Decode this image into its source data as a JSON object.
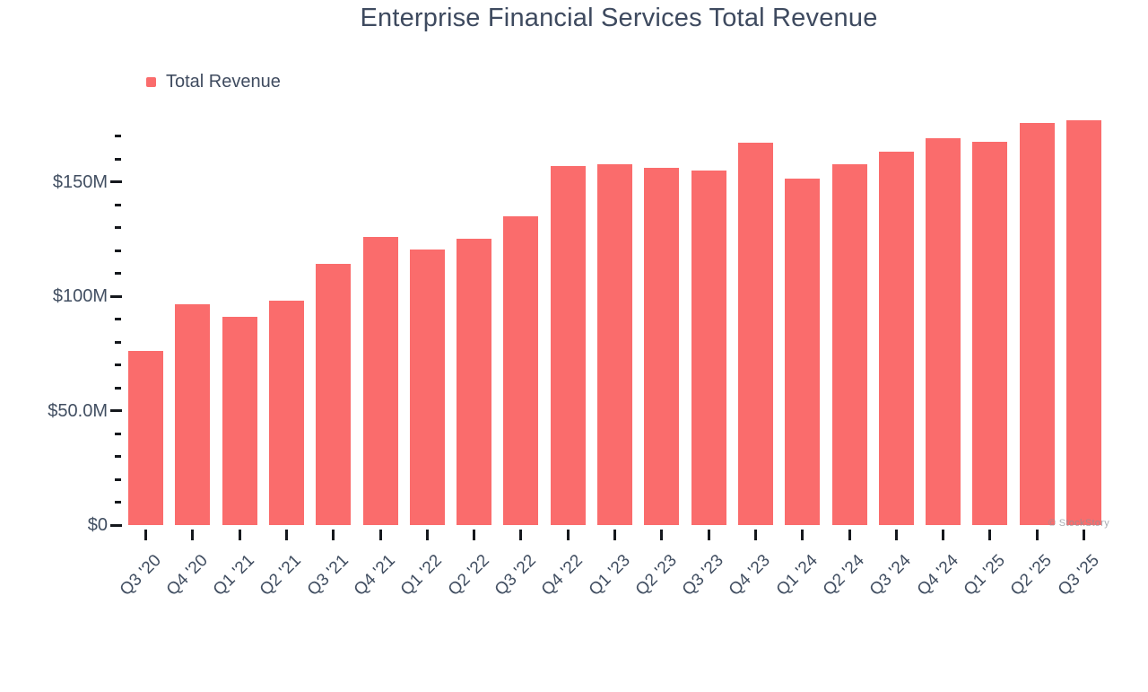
{
  "title": "Enterprise Financial Services Total Revenue",
  "legend": {
    "label": "Total Revenue",
    "color": "#fa6c6c"
  },
  "watermark": "© StockStory",
  "chart_data": {
    "type": "bar",
    "title": "Enterprise Financial Services Total Revenue",
    "categories": [
      "Q3 '20",
      "Q4 '20",
      "Q1 '21",
      "Q2 '21",
      "Q3 '21",
      "Q4 '21",
      "Q1 '22",
      "Q2 '22",
      "Q3 '22",
      "Q4 '22",
      "Q1 '23",
      "Q2 '23",
      "Q3 '23",
      "Q4 '23",
      "Q1 '24",
      "Q2 '24",
      "Q3 '24",
      "Q4 '24",
      "Q1 '25",
      "Q2 '25",
      "Q3 '25"
    ],
    "series": [
      {
        "name": "Total Revenue",
        "values": [
          76,
          96.5,
          91,
          98,
          114,
          126,
          120.5,
          125,
          135,
          157,
          157.5,
          156,
          155,
          167,
          151.5,
          157.5,
          163,
          169,
          167.5,
          175.5,
          177
        ]
      }
    ],
    "unit": "USD millions",
    "xlabel": "",
    "ylabel": "",
    "ylim": [
      0,
      170
    ],
    "y_major_ticks": [
      {
        "value": 0,
        "label": "$0"
      },
      {
        "value": 50,
        "label": "$50.0M"
      },
      {
        "value": 100,
        "label": "$100M"
      },
      {
        "value": 150,
        "label": "$150M"
      }
    ],
    "y_minor_tick_step": 10,
    "grid": false,
    "legend_position": "top-left",
    "bar_color": "#fa6c6c"
  }
}
